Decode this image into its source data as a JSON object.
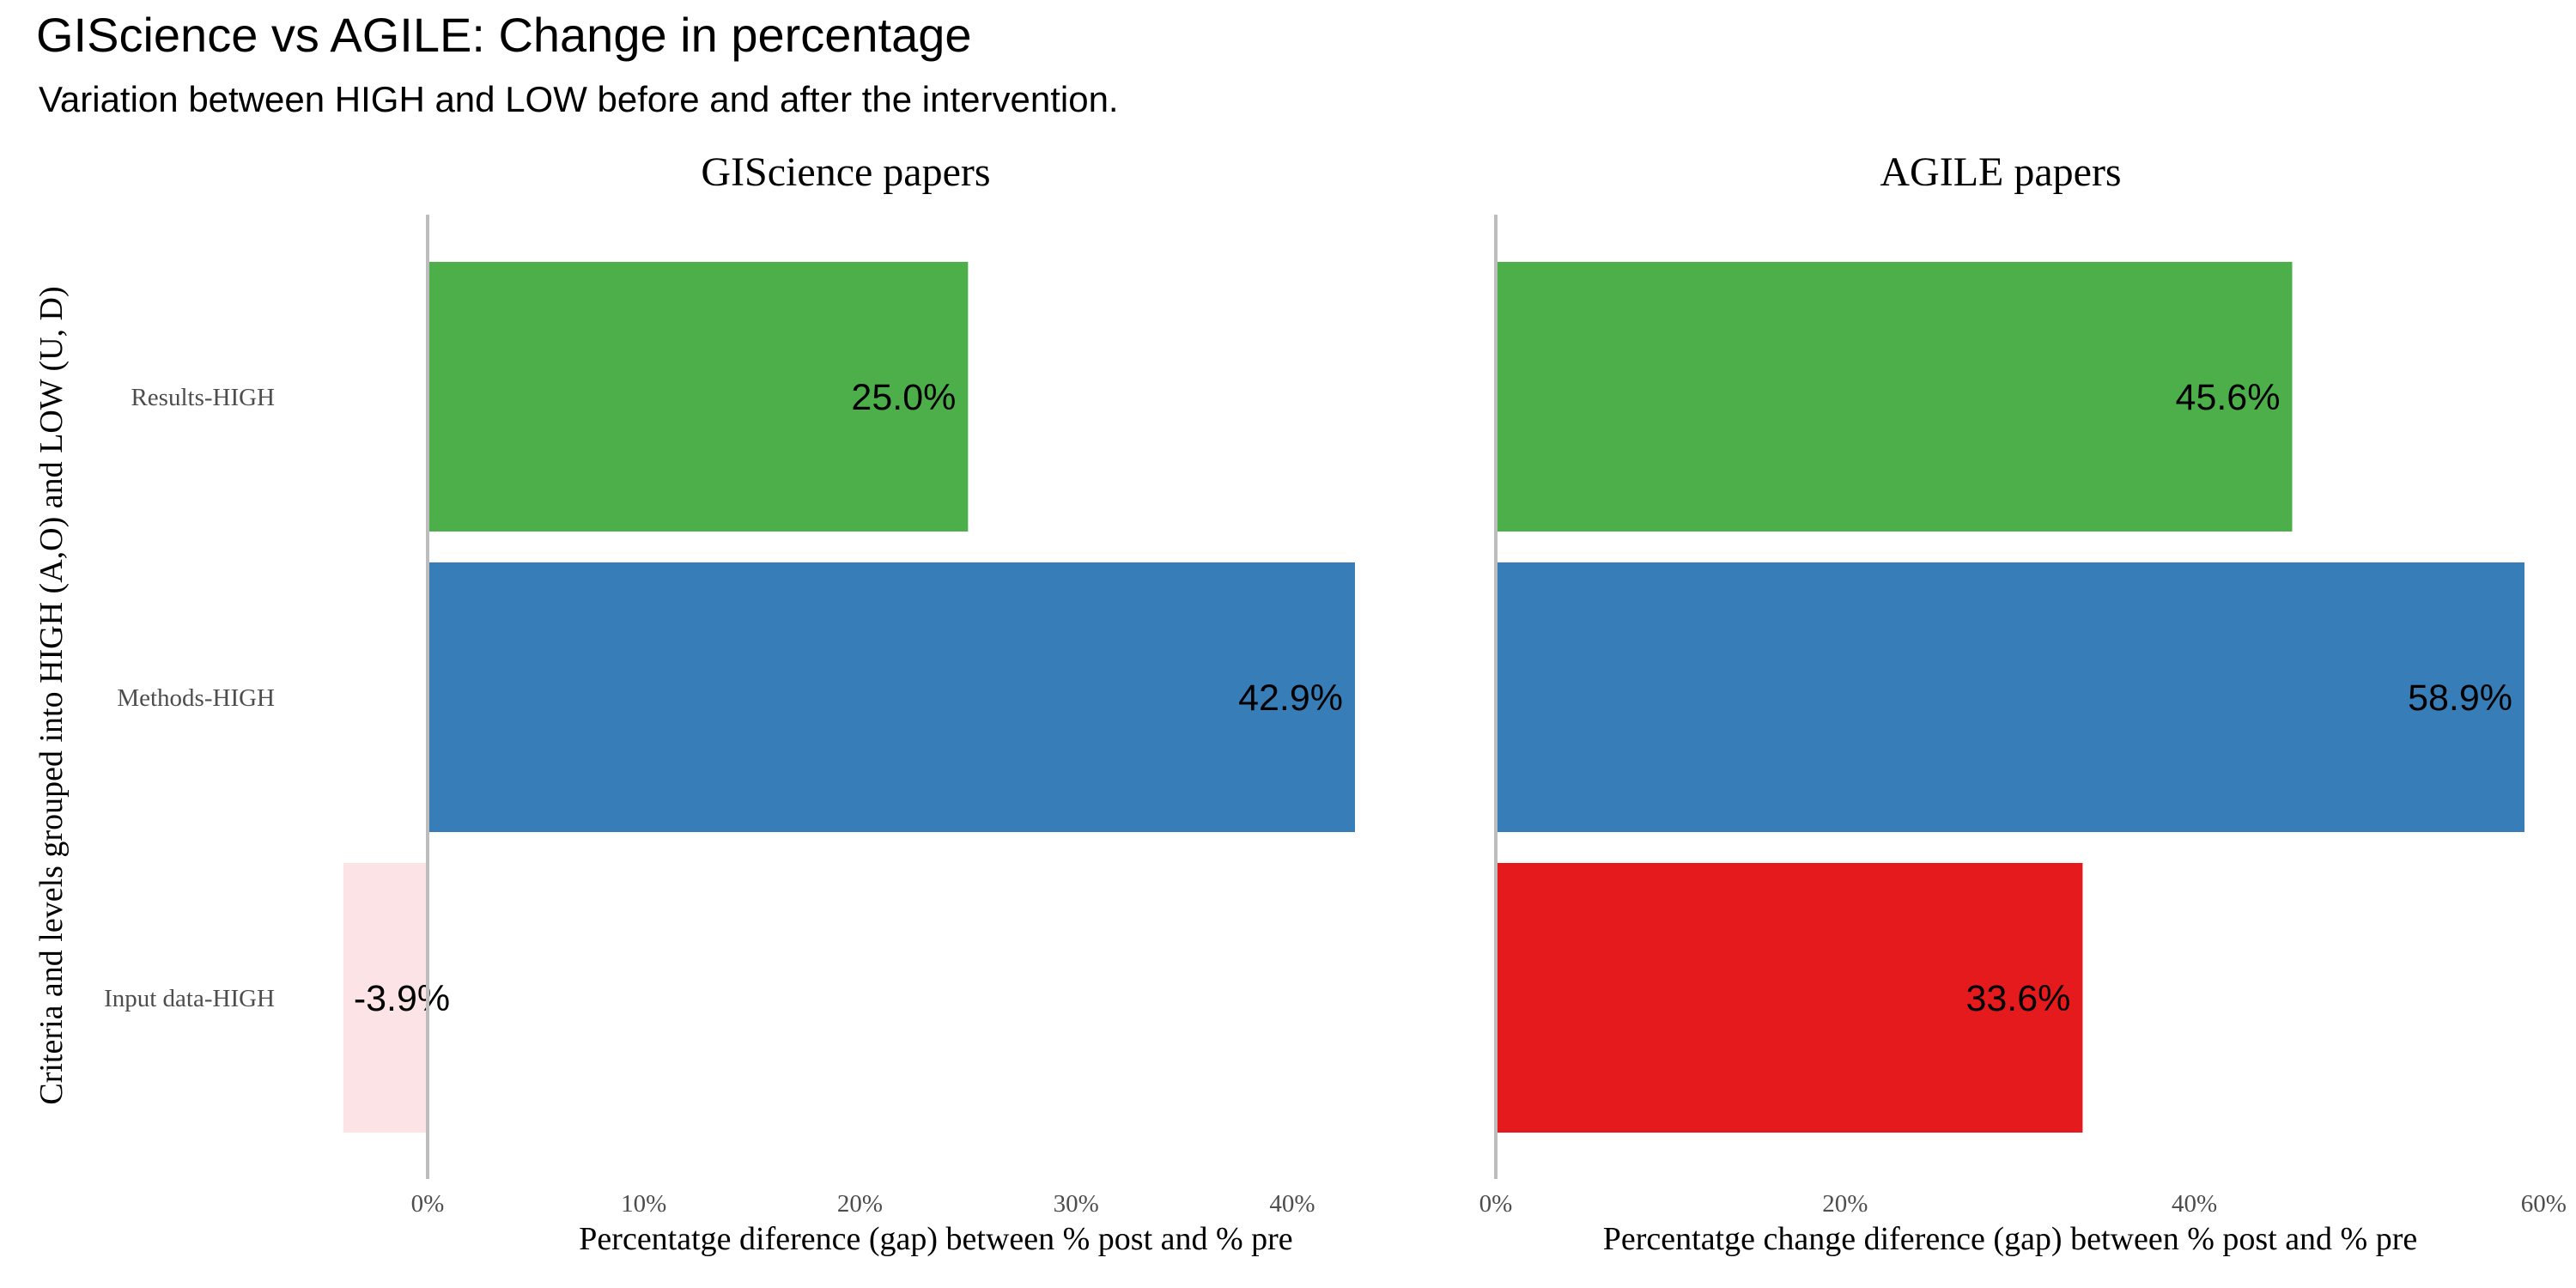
{
  "title": "GIScience vs AGILE: Change in percentage",
  "subtitle": "Variation between HIGH and LOW before and after the intervention.",
  "ylabel": "Criteria and levels grouped into HIGH (A,O) and LOW (U, D)",
  "chart_data": [
    {
      "type": "bar",
      "orientation": "horizontal",
      "title": "GIScience papers",
      "xlabel": "Percentatge diference (gap) between % post and % pre",
      "categories": [
        "Results-HIGH",
        "Methods-HIGH",
        "Input data-HIGH"
      ],
      "values": [
        25.0,
        42.9,
        -3.9
      ],
      "data_labels": [
        "25.0%",
        "42.9%",
        "-3.9%"
      ],
      "colors": [
        "#4daf4a",
        "#377eb8",
        "#fce4e6"
      ],
      "xlim": [
        -3.9,
        42.9
      ],
      "xticks": [
        0,
        10,
        20,
        30,
        40
      ],
      "xtick_labels": [
        "0%",
        "10%",
        "20%",
        "30%",
        "40%"
      ]
    },
    {
      "type": "bar",
      "orientation": "horizontal",
      "title": "AGILE papers",
      "xlabel": "Percentatge change diference (gap) between % post and % pre",
      "categories": [
        "Results-HIGH",
        "Methods-HIGH",
        "Input data-HIGH"
      ],
      "values": [
        45.6,
        58.9,
        33.6
      ],
      "data_labels": [
        "45.6%",
        "58.9%",
        "33.6%"
      ],
      "colors": [
        "#4daf4a",
        "#377eb8",
        "#e41a1c"
      ],
      "xlim": [
        0,
        58.9
      ],
      "xticks": [
        0,
        20,
        40,
        60
      ],
      "xtick_labels": [
        "0%",
        "20%",
        "40%",
        "60%"
      ]
    }
  ]
}
